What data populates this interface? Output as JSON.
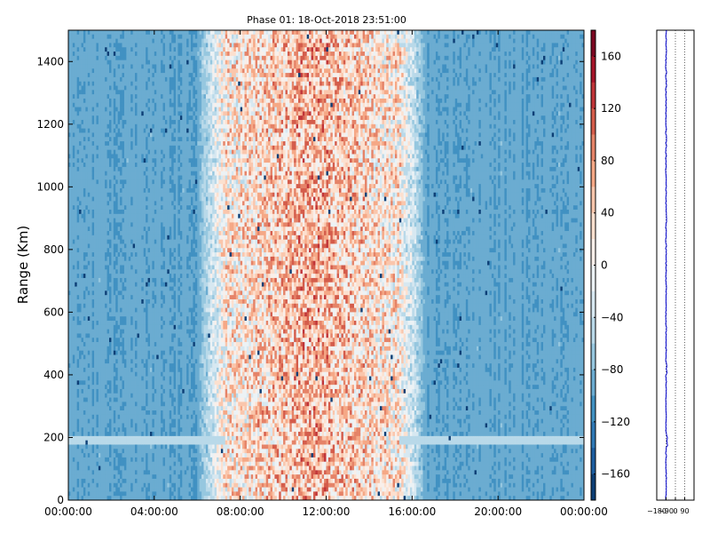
{
  "chart_data": [
    {
      "type": "heatmap",
      "title": "Phase 01: 18-Oct-2018 23:51:00",
      "xlabel": "",
      "ylabel": "Range (Km)",
      "x_ticks": [
        "00:00:00",
        "04:00:00",
        "08:00:00",
        "12:00:00",
        "16:00:00",
        "20:00:00",
        "00:00:00"
      ],
      "y_ticks": [
        0,
        200,
        400,
        600,
        800,
        1000,
        1200,
        1400
      ],
      "xlim_hours": [
        0,
        24
      ],
      "ylim": [
        0,
        1500
      ],
      "colormap": "RdBu_r",
      "colorbar": {
        "ticks": [
          160,
          120,
          80,
          40,
          0,
          -40,
          -80,
          -120,
          -160
        ],
        "range": [
          -180,
          180
        ],
        "levels": 18
      },
      "value_pattern": {
        "background": -95,
        "warm_band_hours": [
          7.3,
          15.4
        ],
        "warm_band_peak_value": 60,
        "horizontal_line_range_km": 190
      }
    },
    {
      "type": "line",
      "title": "",
      "x_ticks": [
        "−180",
        "−90",
        "0",
        "90"
      ],
      "xlim": [
        -180,
        180
      ],
      "ylim": [
        0,
        1500
      ],
      "profile_mean": -90,
      "grid": true
    }
  ],
  "colors": {
    "blue_dark": "#053061",
    "red_dark": "#67001f",
    "profile_line": "#0000cc"
  }
}
